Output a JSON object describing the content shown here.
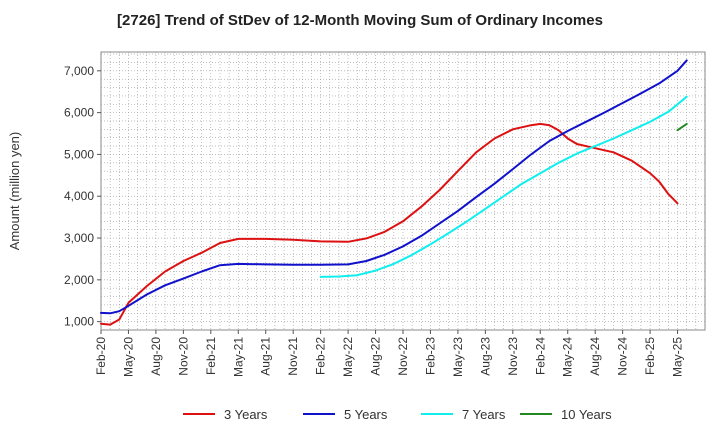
{
  "chart_data": {
    "type": "line",
    "title": "[2726]  Trend of StDev of 12-Month Moving Sum of Ordinary Incomes",
    "xlabel": "",
    "ylabel": "Amount (million yen)",
    "ylim": [
      800,
      7450
    ],
    "y_ticks": [
      1000,
      2000,
      3000,
      4000,
      5000,
      6000,
      7000
    ],
    "y_tick_labels": [
      "1,000",
      "2,000",
      "3,000",
      "4,000",
      "5,000",
      "6,000",
      "7,000"
    ],
    "x_ticks": [
      "Feb-20",
      "May-20",
      "Aug-20",
      "Nov-20",
      "Feb-21",
      "May-21",
      "Aug-21",
      "Nov-21",
      "Feb-22",
      "May-22",
      "Aug-22",
      "Nov-22",
      "Feb-23",
      "May-23",
      "Aug-23",
      "Nov-23",
      "Feb-24",
      "May-24",
      "Aug-24",
      "Nov-24",
      "Feb-25",
      "May-25"
    ],
    "x_range_months": [
      0,
      63
    ],
    "series": [
      {
        "name": "3 Years",
        "color": "#dd1111",
        "points": [
          [
            0,
            950
          ],
          [
            1,
            930
          ],
          [
            2,
            1050
          ],
          [
            3,
            1450
          ],
          [
            5,
            1850
          ],
          [
            7,
            2200
          ],
          [
            9,
            2450
          ],
          [
            11,
            2650
          ],
          [
            13,
            2880
          ],
          [
            15,
            2980
          ],
          [
            18,
            2980
          ],
          [
            21,
            2960
          ],
          [
            24,
            2920
          ],
          [
            27,
            2910
          ],
          [
            29,
            2990
          ],
          [
            31,
            3150
          ],
          [
            33,
            3400
          ],
          [
            35,
            3750
          ],
          [
            37,
            4150
          ],
          [
            39,
            4600
          ],
          [
            41,
            5050
          ],
          [
            43,
            5380
          ],
          [
            45,
            5600
          ],
          [
            47,
            5700
          ],
          [
            48,
            5730
          ],
          [
            49,
            5700
          ],
          [
            50,
            5580
          ],
          [
            51,
            5380
          ],
          [
            52,
            5250
          ],
          [
            54,
            5150
          ],
          [
            56,
            5050
          ],
          [
            58,
            4850
          ],
          [
            60,
            4550
          ],
          [
            61,
            4350
          ],
          [
            62,
            4050
          ],
          [
            63,
            3830
          ]
        ]
      },
      {
        "name": "5 Years",
        "color": "#1111cc",
        "points": [
          [
            0,
            1210
          ],
          [
            1,
            1200
          ],
          [
            2,
            1250
          ],
          [
            3,
            1380
          ],
          [
            5,
            1650
          ],
          [
            7,
            1870
          ],
          [
            9,
            2030
          ],
          [
            11,
            2200
          ],
          [
            13,
            2350
          ],
          [
            15,
            2380
          ],
          [
            18,
            2370
          ],
          [
            21,
            2360
          ],
          [
            24,
            2360
          ],
          [
            27,
            2370
          ],
          [
            29,
            2450
          ],
          [
            31,
            2600
          ],
          [
            33,
            2800
          ],
          [
            35,
            3050
          ],
          [
            37,
            3350
          ],
          [
            39,
            3650
          ],
          [
            41,
            3980
          ],
          [
            43,
            4300
          ],
          [
            45,
            4650
          ],
          [
            47,
            5000
          ],
          [
            49,
            5320
          ],
          [
            51,
            5560
          ],
          [
            53,
            5780
          ],
          [
            55,
            6000
          ],
          [
            57,
            6230
          ],
          [
            59,
            6460
          ],
          [
            61,
            6700
          ],
          [
            63,
            7000
          ],
          [
            64,
            7250
          ]
        ]
      },
      {
        "name": "7 Years",
        "color": "#11eeee",
        "points": [
          [
            24,
            2070
          ],
          [
            26,
            2080
          ],
          [
            28,
            2110
          ],
          [
            30,
            2220
          ],
          [
            32,
            2380
          ],
          [
            34,
            2600
          ],
          [
            36,
            2850
          ],
          [
            38,
            3120
          ],
          [
            40,
            3400
          ],
          [
            42,
            3700
          ],
          [
            44,
            4000
          ],
          [
            46,
            4300
          ],
          [
            48,
            4550
          ],
          [
            50,
            4800
          ],
          [
            52,
            5020
          ],
          [
            54,
            5200
          ],
          [
            56,
            5380
          ],
          [
            58,
            5580
          ],
          [
            60,
            5780
          ],
          [
            62,
            6020
          ],
          [
            64,
            6380
          ]
        ]
      },
      {
        "name": "10 Years",
        "color": "#228822",
        "points": [
          [
            63,
            5580
          ],
          [
            64,
            5730
          ]
        ]
      }
    ],
    "legend_position": "bottom",
    "grid": true
  }
}
